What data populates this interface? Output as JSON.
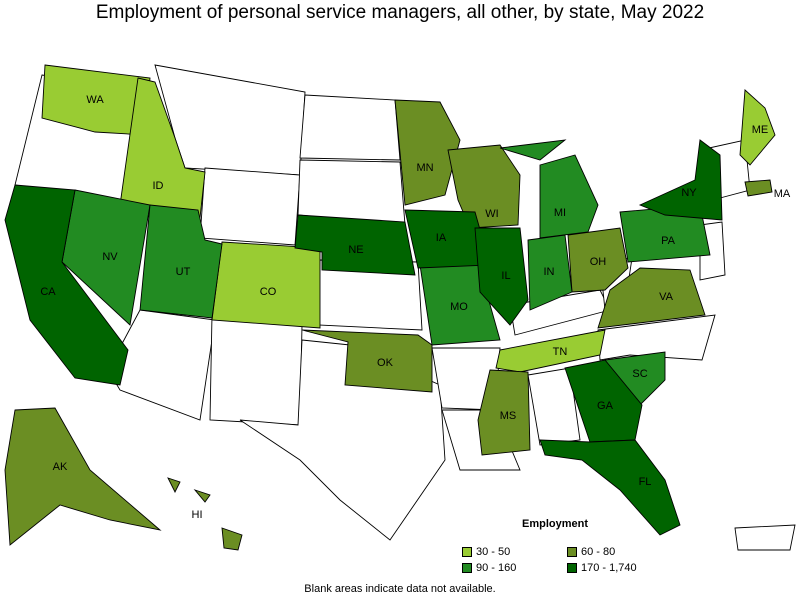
{
  "title": "Employment of personal service managers, all other, by state, May 2022",
  "note": "Blank areas indicate data not available.",
  "legend": {
    "title": "Employment",
    "bins": [
      {
        "label": "30 - 50",
        "color": "#99cc33"
      },
      {
        "label": "60 - 80",
        "color": "#6b8e23"
      },
      {
        "label": "90 - 160",
        "color": "#228b22"
      },
      {
        "label": "170 - 1,740",
        "color": "#006400"
      }
    ]
  },
  "states": [
    {
      "abbr": "WA",
      "bin": 0
    },
    {
      "abbr": "ID",
      "bin": 0
    },
    {
      "abbr": "CO",
      "bin": 0
    },
    {
      "abbr": "TN",
      "bin": 0
    },
    {
      "abbr": "ME",
      "bin": 0
    },
    {
      "abbr": "MN",
      "bin": 1
    },
    {
      "abbr": "WI",
      "bin": 1
    },
    {
      "abbr": "OH",
      "bin": 1
    },
    {
      "abbr": "VA",
      "bin": 1
    },
    {
      "abbr": "OK",
      "bin": 1
    },
    {
      "abbr": "MS",
      "bin": 1
    },
    {
      "abbr": "AK",
      "bin": 1
    },
    {
      "abbr": "HI",
      "bin": 1
    },
    {
      "abbr": "MA",
      "bin": 1
    },
    {
      "abbr": "NV",
      "bin": 2
    },
    {
      "abbr": "UT",
      "bin": 2
    },
    {
      "abbr": "MI",
      "bin": 2
    },
    {
      "abbr": "IN",
      "bin": 2
    },
    {
      "abbr": "PA",
      "bin": 2
    },
    {
      "abbr": "MO",
      "bin": 2
    },
    {
      "abbr": "SC",
      "bin": 2
    },
    {
      "abbr": "CA",
      "bin": 3
    },
    {
      "abbr": "NE",
      "bin": 3
    },
    {
      "abbr": "IA",
      "bin": 3
    },
    {
      "abbr": "IL",
      "bin": 3
    },
    {
      "abbr": "NY",
      "bin": 3
    },
    {
      "abbr": "GA",
      "bin": 3
    },
    {
      "abbr": "FL",
      "bin": 3
    }
  ]
}
